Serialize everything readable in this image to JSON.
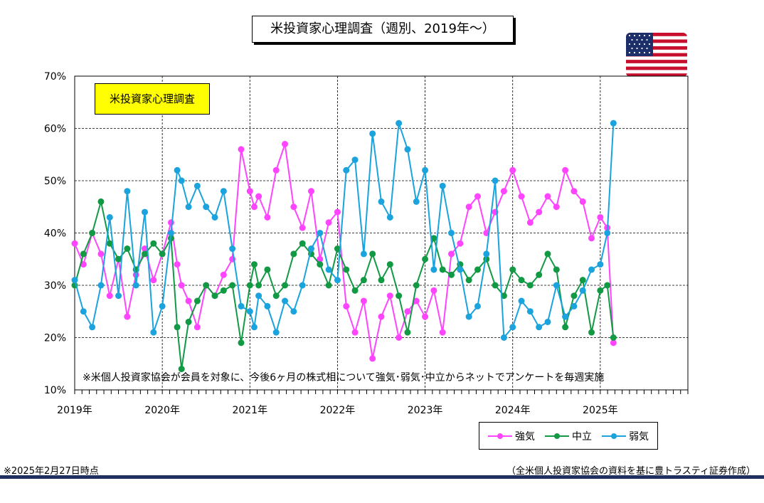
{
  "title": "米投資家心理調査（週別、2019年～）",
  "label_box": "米投資家心理調査",
  "note": "※米個人投資家協会が会員を対象に、今後6ヶ月の株式相について強気･弱気･中立からネットでアンケートを毎週実施",
  "footer_left": "※2025年2月27日時点",
  "footer_right": "（全米個人投資家協会の資料を基に豊トラスティ証券作成）",
  "flag_icon": "us-flag-icon",
  "chart_data": {
    "type": "line",
    "title": "米投資家心理調査（週別、2019年～）",
    "xlabel": "",
    "ylabel": "",
    "ylim": [
      0.1,
      0.7
    ],
    "yticks": [
      "10%",
      "20%",
      "30%",
      "40%",
      "50%",
      "60%",
      "70%"
    ],
    "xticks": [
      "2019年",
      "2020年",
      "2021年",
      "2022年",
      "2023年",
      "2024年",
      "2025年"
    ],
    "x_start_year": 2019,
    "x_end_year": 2026,
    "grid": true,
    "legend": "bottom-right",
    "series": [
      {
        "name": "強気",
        "color": "#ff44ff",
        "x": [
          2019.0,
          2019.1,
          2019.2,
          2019.3,
          2019.4,
          2019.5,
          2019.6,
          2019.7,
          2019.8,
          2019.9,
          2020.0,
          2020.1,
          2020.17,
          2020.22,
          2020.3,
          2020.4,
          2020.5,
          2020.6,
          2020.7,
          2020.8,
          2020.9,
          2021.0,
          2021.05,
          2021.1,
          2021.2,
          2021.3,
          2021.4,
          2021.5,
          2021.6,
          2021.7,
          2021.8,
          2021.9,
          2022.0,
          2022.1,
          2022.2,
          2022.3,
          2022.4,
          2022.5,
          2022.6,
          2022.7,
          2022.8,
          2022.9,
          2023.0,
          2023.1,
          2023.2,
          2023.3,
          2023.4,
          2023.5,
          2023.6,
          2023.7,
          2023.8,
          2023.9,
          2024.0,
          2024.1,
          2024.2,
          2024.3,
          2024.4,
          2024.5,
          2024.6,
          2024.7,
          2024.8,
          2024.9,
          2025.0,
          2025.08,
          2025.15
        ],
        "values": [
          0.38,
          0.34,
          0.4,
          0.36,
          0.28,
          0.35,
          0.24,
          0.32,
          0.37,
          0.31,
          0.36,
          0.42,
          0.34,
          0.3,
          0.27,
          0.22,
          0.3,
          0.28,
          0.32,
          0.35,
          0.56,
          0.48,
          0.45,
          0.47,
          0.43,
          0.52,
          0.57,
          0.45,
          0.41,
          0.48,
          0.35,
          0.42,
          0.44,
          0.26,
          0.21,
          0.27,
          0.16,
          0.24,
          0.28,
          0.2,
          0.25,
          0.27,
          0.24,
          0.29,
          0.21,
          0.36,
          0.38,
          0.45,
          0.47,
          0.4,
          0.44,
          0.48,
          0.52,
          0.47,
          0.42,
          0.44,
          0.47,
          0.45,
          0.52,
          0.48,
          0.46,
          0.39,
          0.43,
          0.41,
          0.19
        ]
      },
      {
        "name": "中立",
        "color": "#119944",
        "x": [
          2019.0,
          2019.1,
          2019.2,
          2019.3,
          2019.4,
          2019.5,
          2019.6,
          2019.7,
          2019.8,
          2019.9,
          2020.0,
          2020.1,
          2020.17,
          2020.22,
          2020.3,
          2020.4,
          2020.5,
          2020.6,
          2020.7,
          2020.8,
          2020.9,
          2021.0,
          2021.05,
          2021.1,
          2021.2,
          2021.3,
          2021.4,
          2021.5,
          2021.6,
          2021.7,
          2021.8,
          2021.9,
          2022.0,
          2022.1,
          2022.2,
          2022.3,
          2022.4,
          2022.5,
          2022.6,
          2022.7,
          2022.8,
          2022.9,
          2023.0,
          2023.1,
          2023.2,
          2023.3,
          2023.4,
          2023.5,
          2023.6,
          2023.7,
          2023.8,
          2023.9,
          2024.0,
          2024.1,
          2024.2,
          2024.3,
          2024.4,
          2024.5,
          2024.6,
          2024.7,
          2024.8,
          2024.9,
          2025.0,
          2025.08,
          2025.15
        ],
        "values": [
          0.3,
          0.36,
          0.4,
          0.46,
          0.38,
          0.35,
          0.37,
          0.33,
          0.36,
          0.38,
          0.36,
          0.39,
          0.22,
          0.14,
          0.23,
          0.27,
          0.3,
          0.28,
          0.29,
          0.3,
          0.19,
          0.3,
          0.34,
          0.3,
          0.33,
          0.28,
          0.3,
          0.36,
          0.38,
          0.36,
          0.34,
          0.3,
          0.37,
          0.33,
          0.29,
          0.31,
          0.36,
          0.31,
          0.34,
          0.28,
          0.21,
          0.3,
          0.35,
          0.39,
          0.33,
          0.32,
          0.34,
          0.31,
          0.33,
          0.35,
          0.3,
          0.28,
          0.33,
          0.31,
          0.3,
          0.32,
          0.36,
          0.33,
          0.22,
          0.28,
          0.31,
          0.21,
          0.29,
          0.3,
          0.2
        ]
      },
      {
        "name": "弱気",
        "color": "#1aa3dd",
        "x": [
          2019.0,
          2019.1,
          2019.2,
          2019.3,
          2019.4,
          2019.5,
          2019.6,
          2019.7,
          2019.8,
          2019.9,
          2020.0,
          2020.1,
          2020.17,
          2020.22,
          2020.3,
          2020.4,
          2020.5,
          2020.6,
          2020.7,
          2020.8,
          2020.9,
          2021.0,
          2021.05,
          2021.1,
          2021.2,
          2021.3,
          2021.4,
          2021.5,
          2021.6,
          2021.7,
          2021.8,
          2021.9,
          2022.0,
          2022.1,
          2022.2,
          2022.3,
          2022.4,
          2022.5,
          2022.6,
          2022.7,
          2022.8,
          2022.9,
          2023.0,
          2023.1,
          2023.2,
          2023.3,
          2023.4,
          2023.5,
          2023.6,
          2023.7,
          2023.8,
          2023.9,
          2024.0,
          2024.1,
          2024.2,
          2024.3,
          2024.4,
          2024.5,
          2024.6,
          2024.7,
          2024.8,
          2024.9,
          2025.0,
          2025.08,
          2025.15
        ],
        "values": [
          0.31,
          0.25,
          0.22,
          0.3,
          0.43,
          0.28,
          0.48,
          0.3,
          0.44,
          0.21,
          0.26,
          0.4,
          0.52,
          0.5,
          0.45,
          0.49,
          0.45,
          0.43,
          0.48,
          0.37,
          0.26,
          0.25,
          0.22,
          0.28,
          0.26,
          0.21,
          0.27,
          0.25,
          0.3,
          0.37,
          0.4,
          0.33,
          0.31,
          0.52,
          0.54,
          0.36,
          0.59,
          0.46,
          0.43,
          0.61,
          0.56,
          0.46,
          0.52,
          0.33,
          0.49,
          0.4,
          0.33,
          0.24,
          0.26,
          0.36,
          0.5,
          0.2,
          0.22,
          0.27,
          0.25,
          0.22,
          0.23,
          0.3,
          0.24,
          0.26,
          0.29,
          0.33,
          0.34,
          0.4,
          0.61
        ]
      }
    ]
  },
  "legend_items": [
    {
      "label": "強気",
      "color": "#ff44ff"
    },
    {
      "label": "中立",
      "color": "#119944"
    },
    {
      "label": "弱気",
      "color": "#1aa3dd"
    }
  ]
}
